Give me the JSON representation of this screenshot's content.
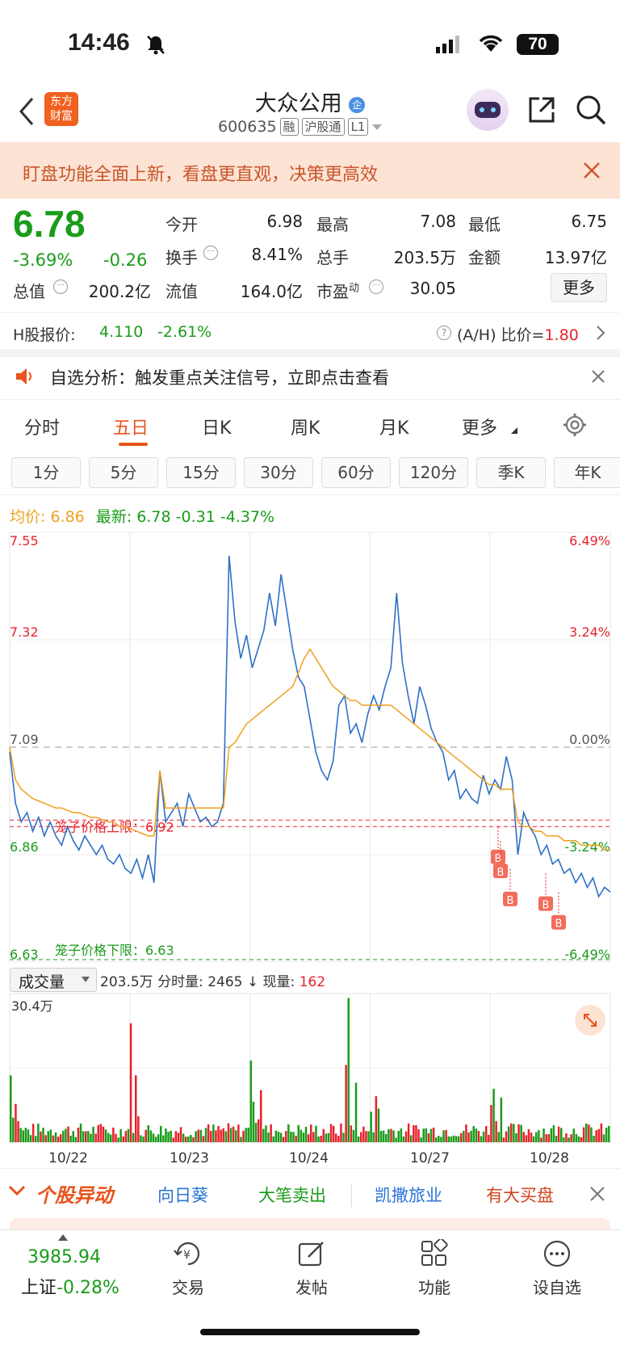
{
  "status_bar": {
    "time": "14:46",
    "battery": "70"
  },
  "header": {
    "stock_name": "大众公用",
    "badge": "企",
    "code": "600635",
    "tags": [
      "融",
      "沪股通",
      "L1"
    ],
    "logo_text_top": "东方",
    "logo_text_bottom": "财富"
  },
  "banner": {
    "text": "盯盘功能全面上新，看盘更直观，决策更高效"
  },
  "quote": {
    "price": "6.78",
    "change_pct": "-3.69%",
    "change": "-0.26",
    "fields": [
      {
        "label": "今开",
        "value": "6.98",
        "color": "green"
      },
      {
        "label": "最高",
        "value": "7.08",
        "color": "red"
      },
      {
        "label": "最低",
        "value": "6.75",
        "color": "green"
      },
      {
        "label": "换手",
        "value": "8.41%",
        "color": "black"
      },
      {
        "label": "总手",
        "value": "203.5万",
        "color": "black"
      },
      {
        "label": "金额",
        "value": "13.97亿",
        "color": "black"
      },
      {
        "label": "总值",
        "value": "200.2亿",
        "color": "black"
      },
      {
        "label": "流值",
        "value": "164.0亿",
        "color": "black"
      },
      {
        "label": "市盈",
        "superscript": "动",
        "value": "30.05",
        "color": "black"
      }
    ],
    "more_button": "更多"
  },
  "h_share": {
    "label": "H股报价:",
    "price": "4.110",
    "change_pct": "-2.61%",
    "ah_label": "(A/H) 比价=",
    "ah_value": "1.80"
  },
  "notice": {
    "text": "自选分析：触发重点关注信号，立即点击查看"
  },
  "tabs": [
    "分时",
    "五日",
    "日K",
    "周K",
    "月K",
    "更多"
  ],
  "active_tab": "五日",
  "intervals": [
    "1分",
    "5分",
    "15分",
    "30分",
    "60分",
    "120分",
    "季K",
    "年K"
  ],
  "chart_info": {
    "avg_label": "均价:",
    "avg_value": "6.86",
    "latest_label": "最新:",
    "latest_value": "6.78",
    "latest_change": "-0.31",
    "latest_pct": "-4.37%"
  },
  "chart_data": {
    "type": "line",
    "x_labels": [
      "10/22",
      "10/23",
      "10/24",
      "10/27",
      "10/28"
    ],
    "y_left_labels": [
      "7.55",
      "7.32",
      "7.09",
      "6.86",
      "6.63"
    ],
    "y_right_labels": [
      "6.49%",
      "3.24%",
      "0.00%",
      "-3.24%",
      "-6.49%"
    ],
    "ylim": [
      6.63,
      7.55
    ],
    "prev_close": 7.09,
    "upper_limit_label": "笼子价格上限：6.92",
    "lower_limit_label": "笼子价格下限：6.63",
    "series": [
      {
        "name": "",
        "color": "#2e6fc7",
        "values": [
          7.08,
          6.97,
          6.93,
          6.95,
          6.91,
          6.94,
          6.9,
          6.93,
          6.9,
          6.88,
          6.92,
          6.89,
          6.87,
          6.9,
          6.88,
          6.86,
          6.88,
          6.85,
          6.84,
          6.86,
          6.83,
          6.82,
          6.85,
          6.81,
          6.86,
          6.8,
          7.04,
          6.93,
          6.95,
          6.97,
          6.92,
          6.99,
          6.96,
          6.93,
          6.94,
          6.92,
          6.93,
          6.97,
          7.5,
          7.36,
          7.28,
          7.33,
          7.26,
          7.3,
          7.34,
          7.42,
          7.35,
          7.46,
          7.38,
          7.3,
          7.24,
          7.22,
          7.15,
          7.08,
          7.04,
          7.02,
          7.06,
          7.18,
          7.2,
          7.12,
          7.14,
          7.1,
          7.16,
          7.2,
          7.17,
          7.22,
          7.26,
          7.42,
          7.27,
          7.2,
          7.14,
          7.22,
          7.18,
          7.13,
          7.1,
          7.08,
          7.02,
          7.04,
          6.98,
          7.0,
          6.98,
          6.97,
          7.03,
          6.99,
          7.02,
          7.0,
          7.07,
          7.02,
          6.86,
          6.95,
          6.92,
          6.9,
          6.86,
          6.88,
          6.84,
          6.85,
          6.82,
          6.83,
          6.8,
          6.82,
          6.79,
          6.81,
          6.77,
          6.79,
          6.78
        ]
      },
      {
        "name": "",
        "color": "#f0a020",
        "values": [
          7.09,
          7.02,
          7.0,
          6.99,
          6.98,
          6.975,
          6.97,
          6.965,
          6.96,
          6.96,
          6.955,
          6.95,
          6.95,
          6.945,
          6.94,
          6.94,
          6.935,
          6.93,
          6.93,
          6.92,
          6.92,
          6.915,
          6.91,
          6.905,
          6.9,
          6.9,
          7.04,
          6.96,
          6.96,
          6.96,
          6.96,
          6.96,
          6.96,
          6.96,
          6.96,
          6.96,
          6.96,
          6.96,
          7.09,
          7.1,
          7.12,
          7.14,
          7.15,
          7.16,
          7.17,
          7.18,
          7.19,
          7.2,
          7.21,
          7.22,
          7.25,
          7.28,
          7.3,
          7.28,
          7.26,
          7.24,
          7.22,
          7.21,
          7.2,
          7.19,
          7.19,
          7.18,
          7.18,
          7.18,
          7.18,
          7.18,
          7.18,
          7.17,
          7.16,
          7.15,
          7.14,
          7.13,
          7.12,
          7.11,
          7.1,
          7.09,
          7.08,
          7.07,
          7.06,
          7.05,
          7.04,
          7.03,
          7.02,
          7.01,
          7.01,
          7.0,
          7.0,
          7.0,
          6.93,
          6.92,
          6.92,
          6.91,
          6.91,
          6.9,
          6.9,
          6.9,
          6.89,
          6.89,
          6.89,
          6.88,
          6.88,
          6.88,
          6.88,
          6.87,
          6.87
        ]
      }
    ],
    "volume": {
      "selector": "成交量",
      "total": "203.5万",
      "fenshi_label": "分时量:",
      "fenshi_value": "2465",
      "now_label": "现量:",
      "now_value": "162",
      "max_label": "30.4万"
    }
  },
  "movers": {
    "title": "个股异动",
    "items": [
      "向日葵",
      "大笔卖出",
      "凯撒旅业",
      "有大买盘"
    ]
  },
  "bottom_nav": {
    "index_value": "3985.94",
    "index_name": "上证",
    "index_change": "-0.28%",
    "items": [
      "交易",
      "发帖",
      "功能",
      "设自选"
    ]
  }
}
